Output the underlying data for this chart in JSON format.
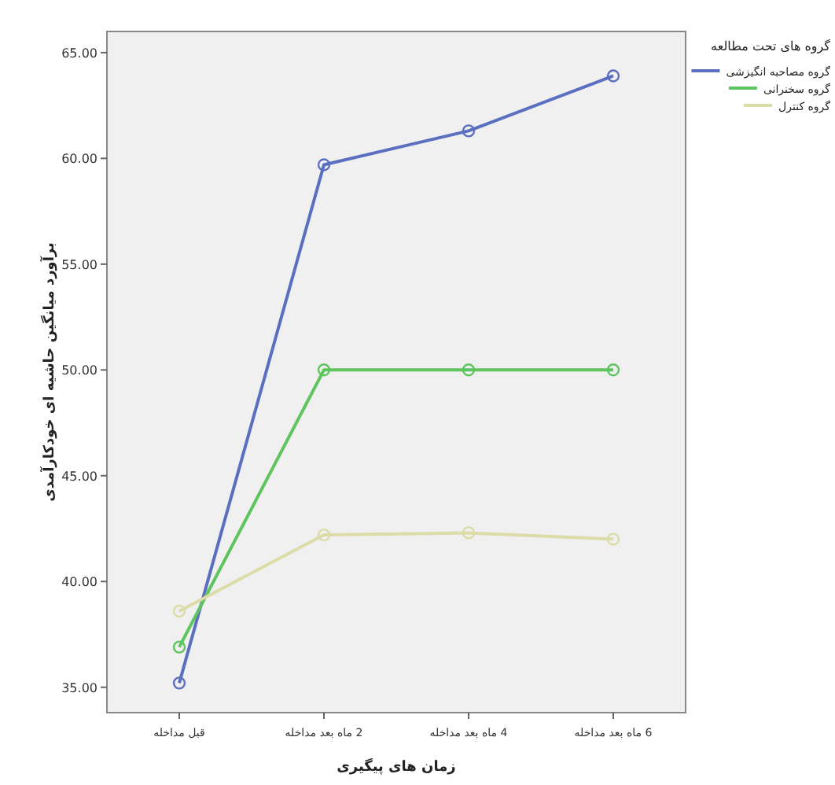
{
  "chart_data": {
    "type": "line",
    "xlabel": "زمان های پیگیری",
    "ylabel": "برآورد میانگین حاشیه ای خودکارآمدی",
    "legend_title": "گروه های تحت مطالعه",
    "categories": [
      "قبل مداخله",
      "2 ماه بعد مداخله",
      "4 ماه بعد مداخله",
      "6 ماه بعد مداخله"
    ],
    "series": [
      {
        "name": "گروه مصاحبه انگیزشی",
        "color": "#5b6fc0",
        "values": [
          35.2,
          59.7,
          61.3,
          63.9
        ]
      },
      {
        "name": "گروه سخنرانی",
        "color": "#5ec45e",
        "values": [
          36.9,
          50.0,
          50.0,
          50.0
        ]
      },
      {
        "name": "گروه کنترل",
        "color": "#dcdca8",
        "values": [
          38.6,
          42.2,
          42.3,
          42.0
        ]
      }
    ],
    "ylim": [
      33.8,
      66
    ],
    "yticks": [
      {
        "value": 35,
        "label": "35.00"
      },
      {
        "value": 40,
        "label": "40.00"
      },
      {
        "value": 45,
        "label": "45.00"
      },
      {
        "value": 50,
        "label": "50.00"
      },
      {
        "value": 55,
        "label": "55.00"
      },
      {
        "value": 60,
        "label": "60.00"
      },
      {
        "value": 65,
        "label": "65.00"
      }
    ],
    "marker": "circle",
    "legend": "right",
    "grid": false
  }
}
